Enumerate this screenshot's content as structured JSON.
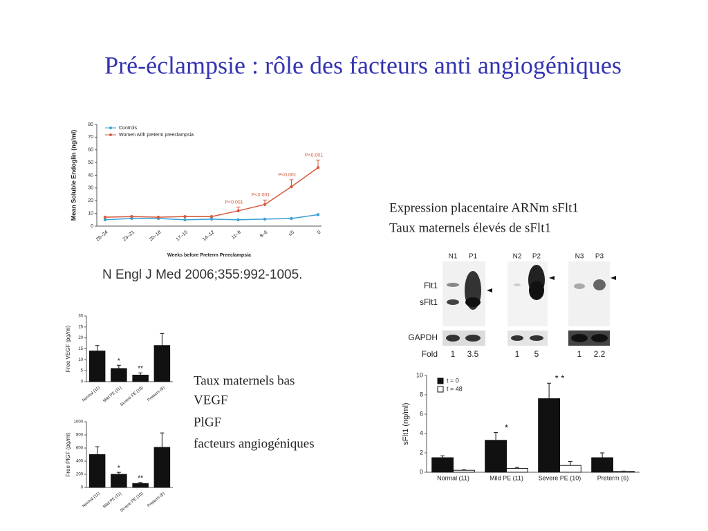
{
  "title": "Pré-éclampsie : rôle des facteurs anti angiogéniques",
  "citation": "N Engl J Med 2006;355:992-1005.",
  "text_right": [
    "Expression placentaire ARNm sFlt1",
    "Taux maternels élevés de sFlt1"
  ],
  "text_left": [
    "Taux maternels bas",
    "VEGF",
    "PlGF",
    "facteurs angiogéniques"
  ],
  "blot": {
    "lanes": [
      "N1",
      "P1",
      "N2",
      "P2",
      "N3",
      "P3"
    ],
    "rows": [
      "Flt1",
      "sFlt1",
      "GAPDH"
    ],
    "fold_label": "Fold",
    "fold": [
      1,
      3.5,
      1,
      5,
      1,
      2.2
    ]
  },
  "chart_data": [
    {
      "type": "line",
      "y_label": "Mean Soluble Endoglin (ng/ml)",
      "x_label": "Weeks before Preterm Preeclampsia",
      "categories": [
        "26–24",
        "23–21",
        "20–18",
        "17–15",
        "14–12",
        "11–9",
        "8–6",
        "≤5",
        "0"
      ],
      "series": [
        {
          "name": "Controls",
          "color": "#3a9fd6",
          "values": [
            5,
            6,
            6,
            5,
            5.5,
            5,
            5.5,
            6,
            9
          ]
        },
        {
          "name": "Women with preterm preeclampsia",
          "color": "#d55a3e",
          "values": [
            7,
            7.5,
            7,
            7.5,
            7.5,
            12,
            17,
            31,
            46
          ],
          "errors": [
            null,
            null,
            null,
            null,
            null,
            3,
            3.5,
            5.5,
            6
          ]
        }
      ],
      "annotations": [
        null,
        null,
        null,
        null,
        null,
        "P<0.001",
        "P<0.001",
        "P<0.001",
        "P<0.001"
      ],
      "ylim": [
        0,
        80
      ],
      "yticks": [
        0,
        10,
        20,
        30,
        40,
        50,
        60,
        70,
        80
      ]
    },
    {
      "type": "bar",
      "y_label": "Free VEGF (pg/ml)",
      "categories": [
        "Normal (11)",
        "Mild PE (11)",
        "Severe PE (10)",
        "Preterm (6)"
      ],
      "values": [
        14,
        6,
        3,
        16.5
      ],
      "errors": [
        2.5,
        1.5,
        1,
        5.5
      ],
      "color": "#111111",
      "annotations": [
        null,
        "*",
        "**",
        null
      ],
      "ylim": [
        0,
        30
      ],
      "yticks": [
        0,
        5,
        10,
        15,
        20,
        25,
        30
      ]
    },
    {
      "type": "bar",
      "y_label": "Free PlGF (pg/ml)",
      "categories": [
        "Normal (11)",
        "Mild PE (11)",
        "Severe PE (10)",
        "Preterm (6)"
      ],
      "values": [
        500,
        200,
        60,
        610
      ],
      "errors": [
        120,
        30,
        15,
        220
      ],
      "color": "#111111",
      "annotations": [
        null,
        "*",
        "**",
        null
      ],
      "ylim": [
        0,
        1000
      ],
      "yticks": [
        0,
        200,
        400,
        600,
        800,
        1000
      ]
    },
    {
      "type": "bar",
      "y_label": "sFlt1 (ng/ml)",
      "categories": [
        "Normal (11)",
        "Mild PE (11)",
        "Severe PE (10)",
        "Preterm (6)"
      ],
      "series": [
        {
          "name": "t = 0",
          "color": "#111111",
          "values": [
            1.5,
            3.3,
            7.6,
            1.5
          ],
          "errors": [
            0.2,
            0.8,
            1.6,
            0.5
          ]
        },
        {
          "name": "t = 48",
          "color": "#ffffff",
          "values": [
            0.2,
            0.4,
            0.7,
            0.1
          ],
          "errors": [
            0.05,
            0.1,
            0.4,
            0.02
          ]
        }
      ],
      "annotations": [
        null,
        "*",
        "* *",
        null
      ],
      "ylim": [
        0,
        10
      ],
      "yticks": [
        0,
        2,
        4,
        6,
        8,
        10
      ]
    }
  ]
}
